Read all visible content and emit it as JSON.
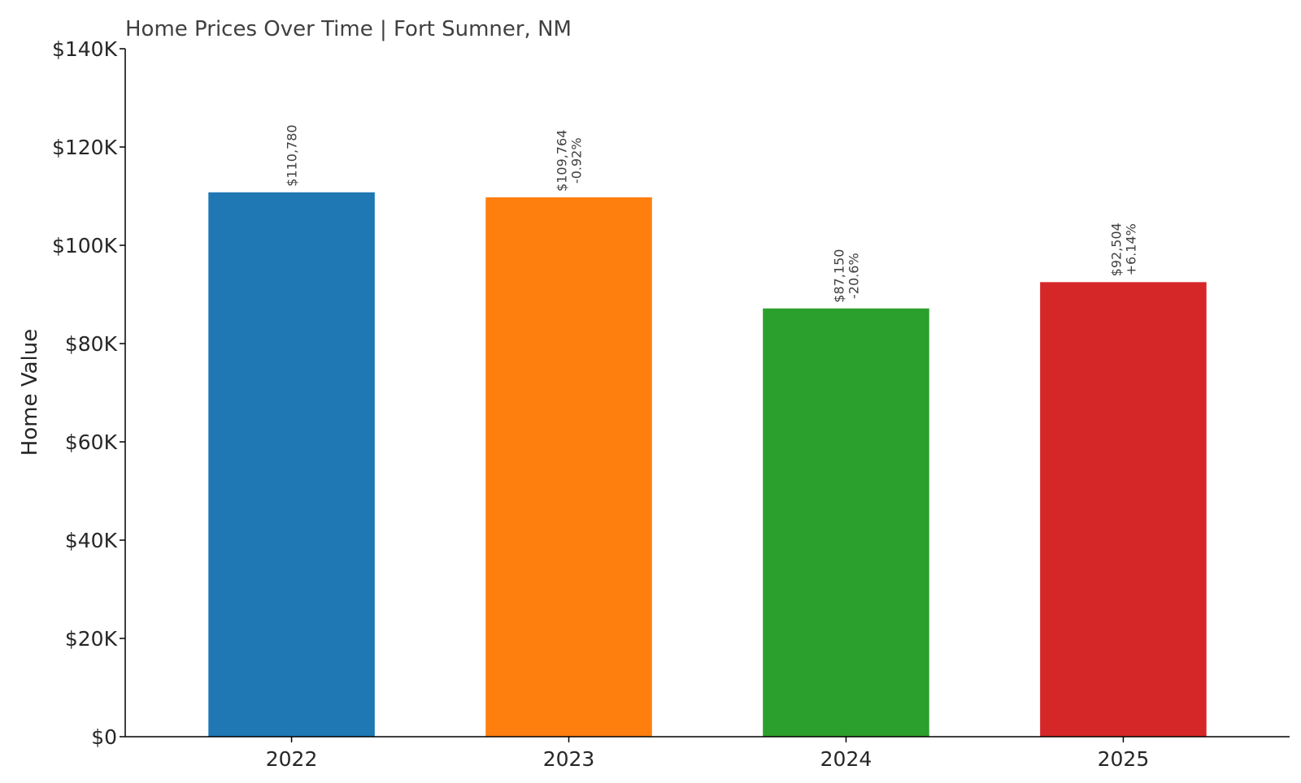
{
  "chart_data": {
    "type": "bar",
    "title": "Home Prices Over Time | Fort Sumner, NM",
    "xlabel": "",
    "ylabel": "Home Value",
    "categories": [
      "2022",
      "2023",
      "2024",
      "2025"
    ],
    "values": [
      110780,
      109764,
      87150,
      92504
    ],
    "value_labels": [
      "$110,780",
      "$109,764",
      "$87,150",
      "$92,504"
    ],
    "change_labels": [
      "",
      "-0.92%",
      "-20.6%",
      "+6.14%"
    ],
    "colors": [
      "#1f77b4",
      "#ff7f0e",
      "#2ca02c",
      "#d62728"
    ],
    "ylim": [
      0,
      140000
    ],
    "yticks": [
      0,
      20000,
      40000,
      60000,
      80000,
      100000,
      120000,
      140000
    ],
    "ytick_labels": [
      "$0",
      "$20K",
      "$40K",
      "$60K",
      "$80K",
      "$100K",
      "$120K",
      "$140K"
    ],
    "grid": false,
    "legend": "none"
  }
}
